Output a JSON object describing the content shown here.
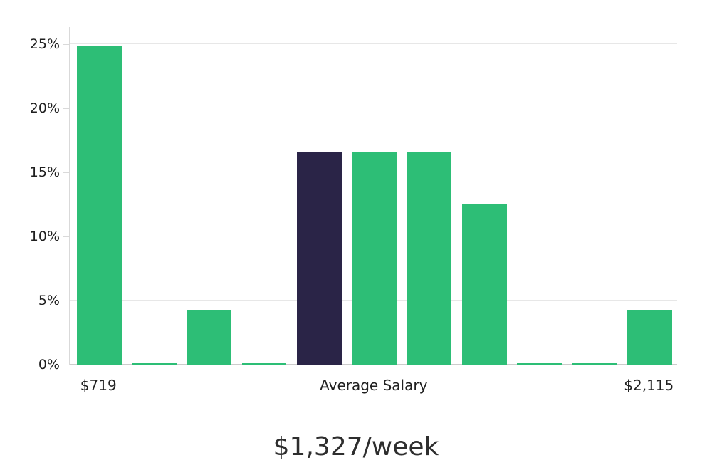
{
  "footer": {
    "caption": "$1,327/week"
  },
  "chart_data": {
    "type": "bar",
    "description": "Weekly salary distribution histogram with highlighted average-salary bar",
    "values": [
      24.85,
      0.12,
      4.2,
      0.12,
      16.6,
      16.6,
      16.6,
      12.5,
      0.12,
      0.12,
      4.2
    ],
    "values_unit": "percent",
    "highlight_index": 4,
    "x_tick_labels": [
      {
        "bar_index": 0,
        "label": "$719"
      },
      {
        "bar_index": 5,
        "label": "Average Salary"
      },
      {
        "bar_index": 10,
        "label": "$2,115"
      }
    ],
    "y_ticks": [
      {
        "value": 0,
        "label": "0%"
      },
      {
        "value": 5,
        "label": "5%"
      },
      {
        "value": 10,
        "label": "10%"
      },
      {
        "value": 15,
        "label": "15%"
      },
      {
        "value": 20,
        "label": "20%"
      },
      {
        "value": 25,
        "label": "25%"
      }
    ],
    "ylim": [
      0,
      26.3
    ],
    "grid": true,
    "legend": null,
    "caption": "$1,327/week",
    "colors": {
      "bar": "#2dbe76",
      "highlight_bar": "#2a2447",
      "gridline": "#e7e7e7",
      "axis_line": "#d9d9d9",
      "text": "#1f1f1f"
    }
  }
}
